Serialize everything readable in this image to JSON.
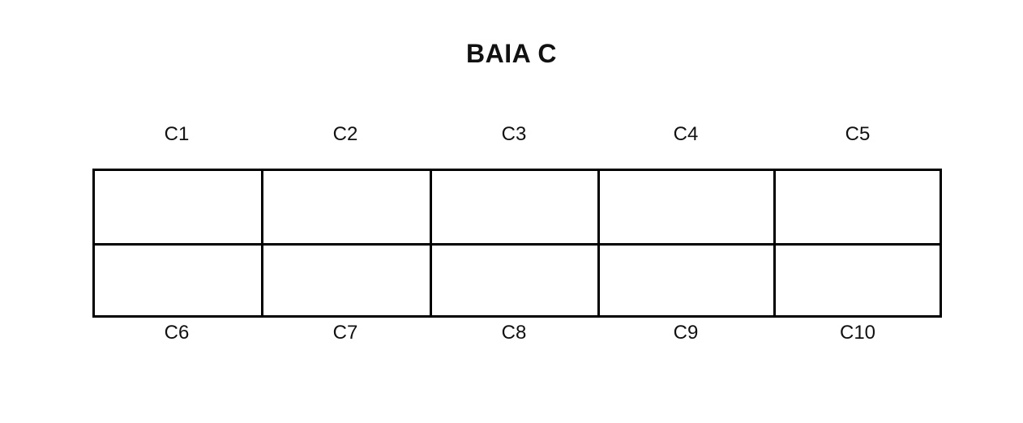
{
  "title": "BAIA C",
  "top_row_labels": [
    "C1",
    "C2",
    "C3",
    "C4",
    "C5"
  ],
  "bottom_row_labels": [
    "C6",
    "C7",
    "C8",
    "C9",
    "C10"
  ]
}
